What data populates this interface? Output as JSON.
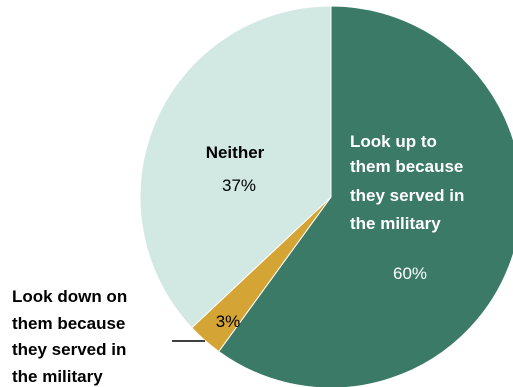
{
  "chart_data": {
    "type": "pie",
    "slices": [
      {
        "label_lines": [
          "Look up to",
          "them because",
          "they served in",
          "the military"
        ],
        "value": 60,
        "value_label": "60%",
        "color": "#3a7a66",
        "label_color": "#ffffff"
      },
      {
        "label_lines": [
          "Look down on",
          "them because",
          "they served in",
          "the military"
        ],
        "value": 3,
        "value_label": "3%",
        "color": "#d4a535",
        "label_color": "#000000"
      },
      {
        "label_lines": [
          "Neither"
        ],
        "value": 37,
        "value_label": "37%",
        "color": "#d2e8e3",
        "label_color": "#000000"
      }
    ]
  }
}
